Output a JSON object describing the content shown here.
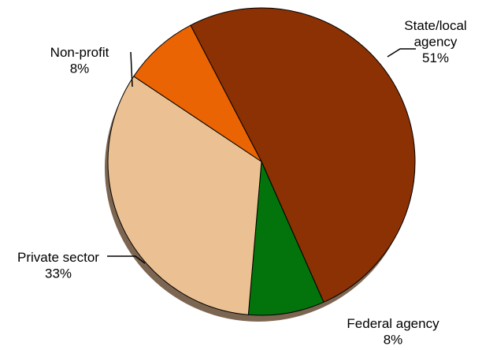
{
  "chart_data": {
    "type": "pie",
    "slices": [
      {
        "label_lines": [
          "State/local",
          "agency"
        ],
        "value": 51,
        "value_label": "51%",
        "color": "#8B3103"
      },
      {
        "label_lines": [
          "Federal agency"
        ],
        "value": 8,
        "value_label": "8%",
        "color": "#03730B"
      },
      {
        "label_lines": [
          "Private sector"
        ],
        "value": 33,
        "value_label": "33%",
        "color": "#EBC193"
      },
      {
        "label_lines": [
          "Non-profit"
        ],
        "value": 8,
        "value_label": "8%",
        "color": "#EB6403"
      }
    ],
    "style": "3d-shadow",
    "legend": "none"
  }
}
